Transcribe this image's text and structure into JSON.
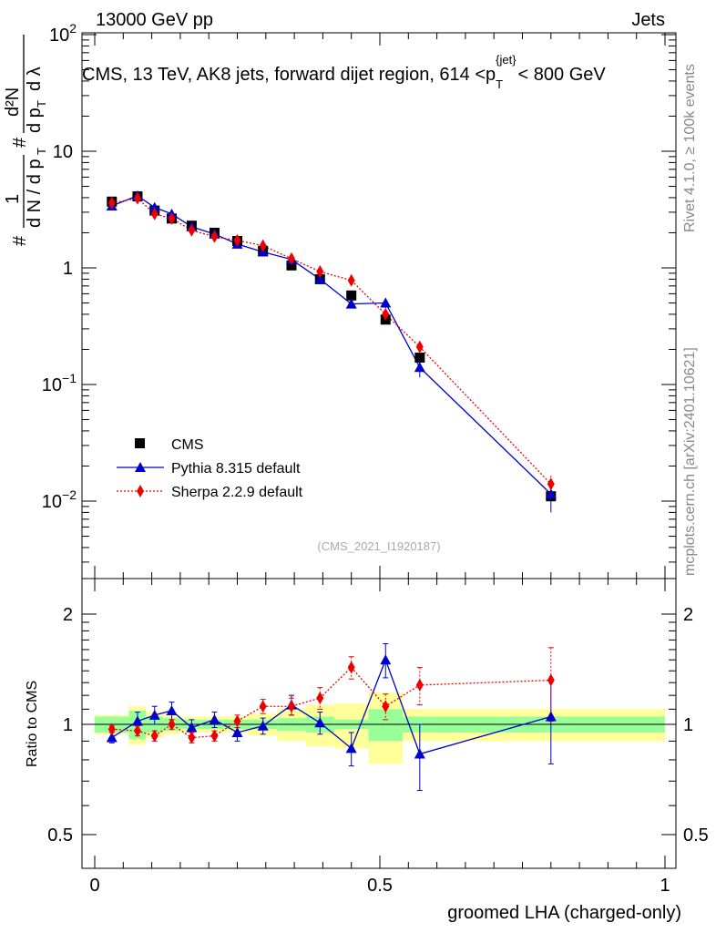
{
  "header": {
    "left": "13000 GeV pp",
    "right": "Jets"
  },
  "title_parts": {
    "pre": "CMS, 13 TeV, AK8 jets, forward dijet region, 614 <p",
    "sub": "T",
    "sup": "{jet}",
    "post": "< 800 GeV"
  },
  "ylabel_main": {
    "hash1": "#",
    "one": "1",
    "dN": "d N / d p",
    "T1": "T",
    "hash2": "#",
    "d2N": "d²N",
    "dpT": "d p",
    "T2": "T",
    "dl": "d λ"
  },
  "ylabel_ratio": "Ratio to CMS",
  "xlabel": "groomed LHA (charged-only)",
  "side_labels": {
    "rivet": "Rivet 4.1.0, ≥ 100k events",
    "mcplots": "mcplots.cern.ch [arXiv:2401.10621]"
  },
  "analysis_id": "(CMS_2021_I1920187)",
  "legend": {
    "cms": "CMS",
    "pythia": "Pythia 8.315 default",
    "sherpa": "Sherpa 2.2.9 default"
  },
  "colors": {
    "cms": "#000000",
    "pythia": "#0000cc",
    "sherpa": "#ee0000",
    "band_green": "#99ff99",
    "band_yellow": "#ffff99"
  },
  "axis_ticks": {
    "main_y": [
      {
        "base": "10",
        "exp": "−2",
        "v": 0.01
      },
      {
        "base": "10",
        "exp": "−1",
        "v": 0.1
      },
      {
        "base": "1",
        "exp": "",
        "v": 1
      },
      {
        "base": "10",
        "exp": "",
        "v": 10
      },
      {
        "base": "10",
        "exp": "2",
        "v": 100
      }
    ],
    "ratio_y": [
      {
        "label": "0.5",
        "v": 0.5
      },
      {
        "label": "1",
        "v": 1
      },
      {
        "label": "2",
        "v": 2
      }
    ],
    "x": [
      {
        "label": "0",
        "v": 0
      },
      {
        "label": "0.5",
        "v": 0.5
      },
      {
        "label": "1",
        "v": 1
      }
    ]
  },
  "chart_data": {
    "type": "scatter",
    "title": "CMS, 13 TeV, AK8 jets, forward dijet region, 614 < pT jet < 800 GeV",
    "xlabel": "groomed LHA (charged-only)",
    "ylabel": "1/N dN/dpT ... d2N/(dpT dλ)",
    "xlim": [
      0,
      1
    ],
    "ylim_main": [
      0.0025,
      100
    ],
    "ylim_ratio": [
      0.4,
      2.3
    ],
    "yscale_main": "log",
    "x": [
      0.03,
      0.075,
      0.105,
      0.135,
      0.17,
      0.21,
      0.25,
      0.295,
      0.345,
      0.395,
      0.45,
      0.51,
      0.57,
      0.8
    ],
    "x_err": [
      0.03,
      0.015,
      0.015,
      0.015,
      0.02,
      0.02,
      0.02,
      0.025,
      0.025,
      0.025,
      0.03,
      0.03,
      0.03,
      0.2
    ],
    "series": [
      {
        "name": "CMS",
        "marker": "square",
        "values": [
          3.7,
          4.1,
          3.1,
          2.65,
          2.3,
          2.0,
          1.7,
          1.4,
          1.05,
          0.8,
          0.58,
          0.36,
          0.17,
          0.011
        ]
      },
      {
        "name": "Pythia 8.315 default",
        "marker": "triangle",
        "values": [
          3.4,
          4.15,
          3.3,
          2.9,
          2.25,
          1.95,
          1.6,
          1.37,
          1.18,
          0.8,
          0.49,
          0.5,
          0.14,
          0.0115
        ],
        "errors": [
          0.1,
          0.12,
          0.1,
          0.09,
          0.08,
          0.07,
          0.06,
          0.06,
          0.06,
          0.05,
          0.04,
          0.05,
          0.025,
          0.0035
        ]
      },
      {
        "name": "Sherpa 2.2.9 default",
        "marker": "diamond",
        "values": [
          3.6,
          3.95,
          2.9,
          2.65,
          2.1,
          1.85,
          1.72,
          1.55,
          1.2,
          0.93,
          0.78,
          0.4,
          0.21,
          0.014
        ],
        "errors": [
          0.1,
          0.12,
          0.1,
          0.09,
          0.08,
          0.07,
          0.06,
          0.06,
          0.06,
          0.05,
          0.05,
          0.04,
          0.025,
          0.0025
        ]
      }
    ],
    "ratio": {
      "pythia": {
        "values": [
          0.92,
          1.02,
          1.06,
          1.09,
          0.98,
          1.03,
          0.95,
          0.99,
          1.13,
          1.01,
          0.86,
          1.5,
          0.83,
          1.05
        ],
        "errors": [
          0.03,
          0.06,
          0.06,
          0.06,
          0.05,
          0.05,
          0.05,
          0.05,
          0.07,
          0.07,
          0.09,
          0.16,
          0.17,
          0.27
        ]
      },
      "sherpa": {
        "values": [
          0.97,
          0.96,
          0.93,
          1.0,
          0.92,
          0.93,
          1.02,
          1.12,
          1.12,
          1.18,
          1.43,
          1.12,
          1.28,
          1.32
        ],
        "errors": [
          0.02,
          0.03,
          0.03,
          0.03,
          0.03,
          0.03,
          0.04,
          0.05,
          0.06,
          0.08,
          0.1,
          0.09,
          0.15,
          0.3
        ]
      },
      "band_green": [
        0.05,
        0.09,
        0.05,
        0.04,
        0.03,
        0.03,
        0.03,
        0.03,
        0.04,
        0.05,
        0.03,
        0.1,
        0.05,
        0.05
      ],
      "band_yellow": [
        0.06,
        0.12,
        0.08,
        0.06,
        0.05,
        0.05,
        0.05,
        0.07,
        0.1,
        0.13,
        0.14,
        0.22,
        0.1,
        0.1
      ]
    }
  }
}
